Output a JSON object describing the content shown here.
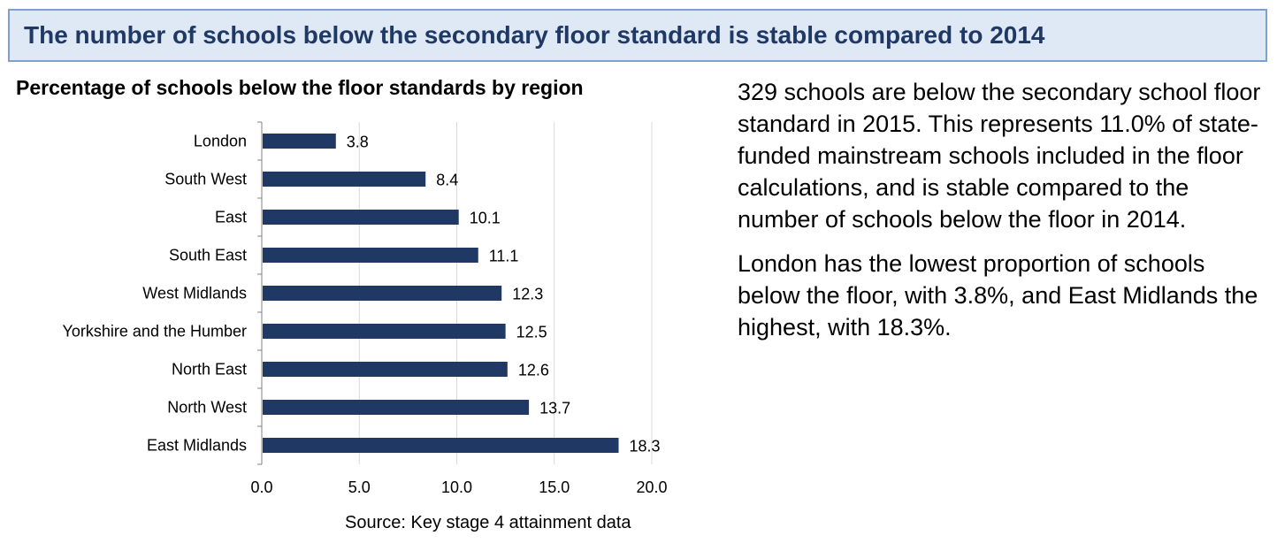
{
  "header": {
    "title": "The number of schools below the secondary floor standard is stable compared to 2014"
  },
  "chart_title": "Percentage of schools below the floor standards by region",
  "source": "Source: Key stage 4 attainment data",
  "commentary": [
    "329 schools are below the secondary school floor standard in 2015. This represents 11.0% of state-funded mainstream schools included in the floor calculations, and is stable compared to the number of schools below the floor in 2014.",
    "London has the lowest proportion of schools below the floor, with 3.8%, and East Midlands the highest, with 18.3%."
  ],
  "colors": {
    "bar": "#1f3864",
    "gridline": "#d9d9d9",
    "axis": "#808080",
    "banner_fill": "#dfe9f6",
    "banner_border": "#7f9fcf",
    "banner_text": "#1f3864"
  },
  "chart_data": {
    "type": "bar",
    "orientation": "horizontal",
    "title": "Percentage of schools below the floor standards by region",
    "categories": [
      "London",
      "South West",
      "East",
      "South East",
      "West Midlands",
      "Yorkshire and the Humber",
      "North East",
      "North West",
      "East Midlands"
    ],
    "values": [
      3.8,
      8.4,
      10.1,
      11.1,
      12.3,
      12.5,
      12.6,
      13.7,
      18.3
    ],
    "value_labels": [
      "3.8",
      "8.4",
      "10.1",
      "11.1",
      "12.3",
      "12.5",
      "12.6",
      "13.7",
      "18.3"
    ],
    "xlim": [
      0,
      20
    ],
    "xticks": [
      0,
      5,
      10,
      15,
      20
    ],
    "xtick_labels": [
      "0.0",
      "5.0",
      "10.0",
      "15.0",
      "20.0"
    ],
    "xlabel": "",
    "ylabel": "",
    "grid": "vertical",
    "legend": "none"
  }
}
